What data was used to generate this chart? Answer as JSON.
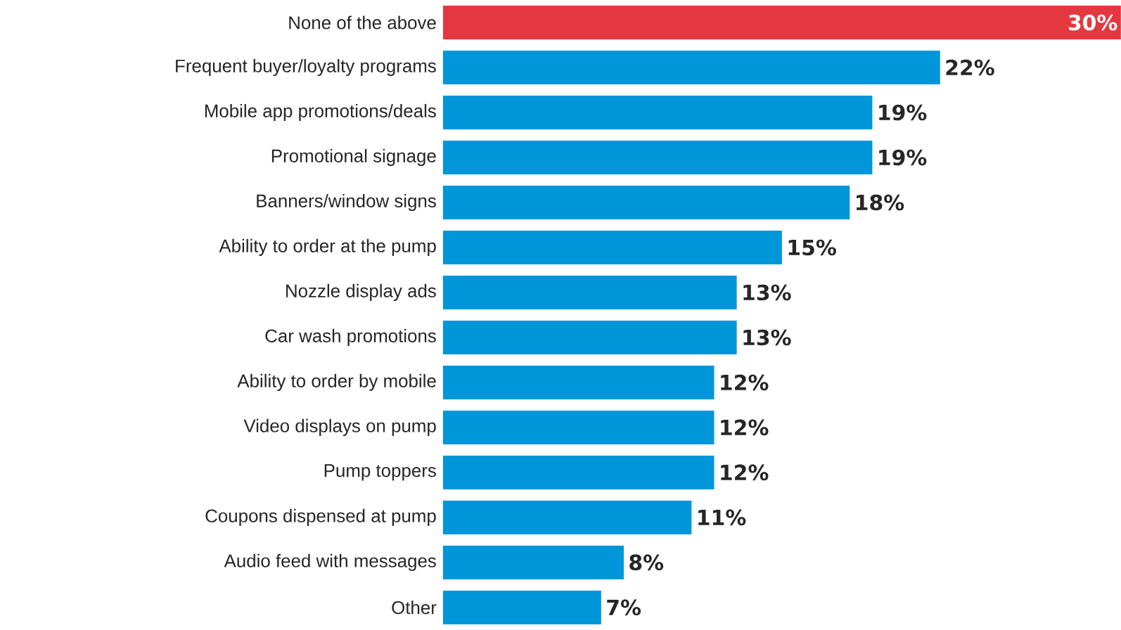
{
  "chart_data": {
    "type": "bar",
    "orientation": "horizontal",
    "categories": [
      "None of the above",
      "Frequent buyer/loyalty programs",
      "Mobile app promotions/deals",
      "Promotional signage",
      "Banners/window signs",
      "Ability to order at the pump",
      "Nozzle display ads",
      "Car wash promotions",
      "Ability to order by mobile",
      "Video displays on pump",
      "Pump toppers",
      "Coupons dispensed at pump",
      "Audio feed with messages",
      "Other"
    ],
    "values": [
      30,
      22,
      19,
      19,
      18,
      15,
      13,
      13,
      12,
      12,
      12,
      11,
      8,
      7
    ],
    "colors": [
      "#e5373f",
      "#0096d9",
      "#0096d9",
      "#0096d9",
      "#0096d9",
      "#0096d9",
      "#0096d9",
      "#0096d9",
      "#0096d9",
      "#0096d9",
      "#0096d9",
      "#0096d9",
      "#0096d9",
      "#0096d9"
    ],
    "value_labels": [
      "30%",
      "22%",
      "19%",
      "19%",
      "18%",
      "15%",
      "13%",
      "13%",
      "12%",
      "12%",
      "12%",
      "11%",
      "8%",
      "7%"
    ]
  }
}
